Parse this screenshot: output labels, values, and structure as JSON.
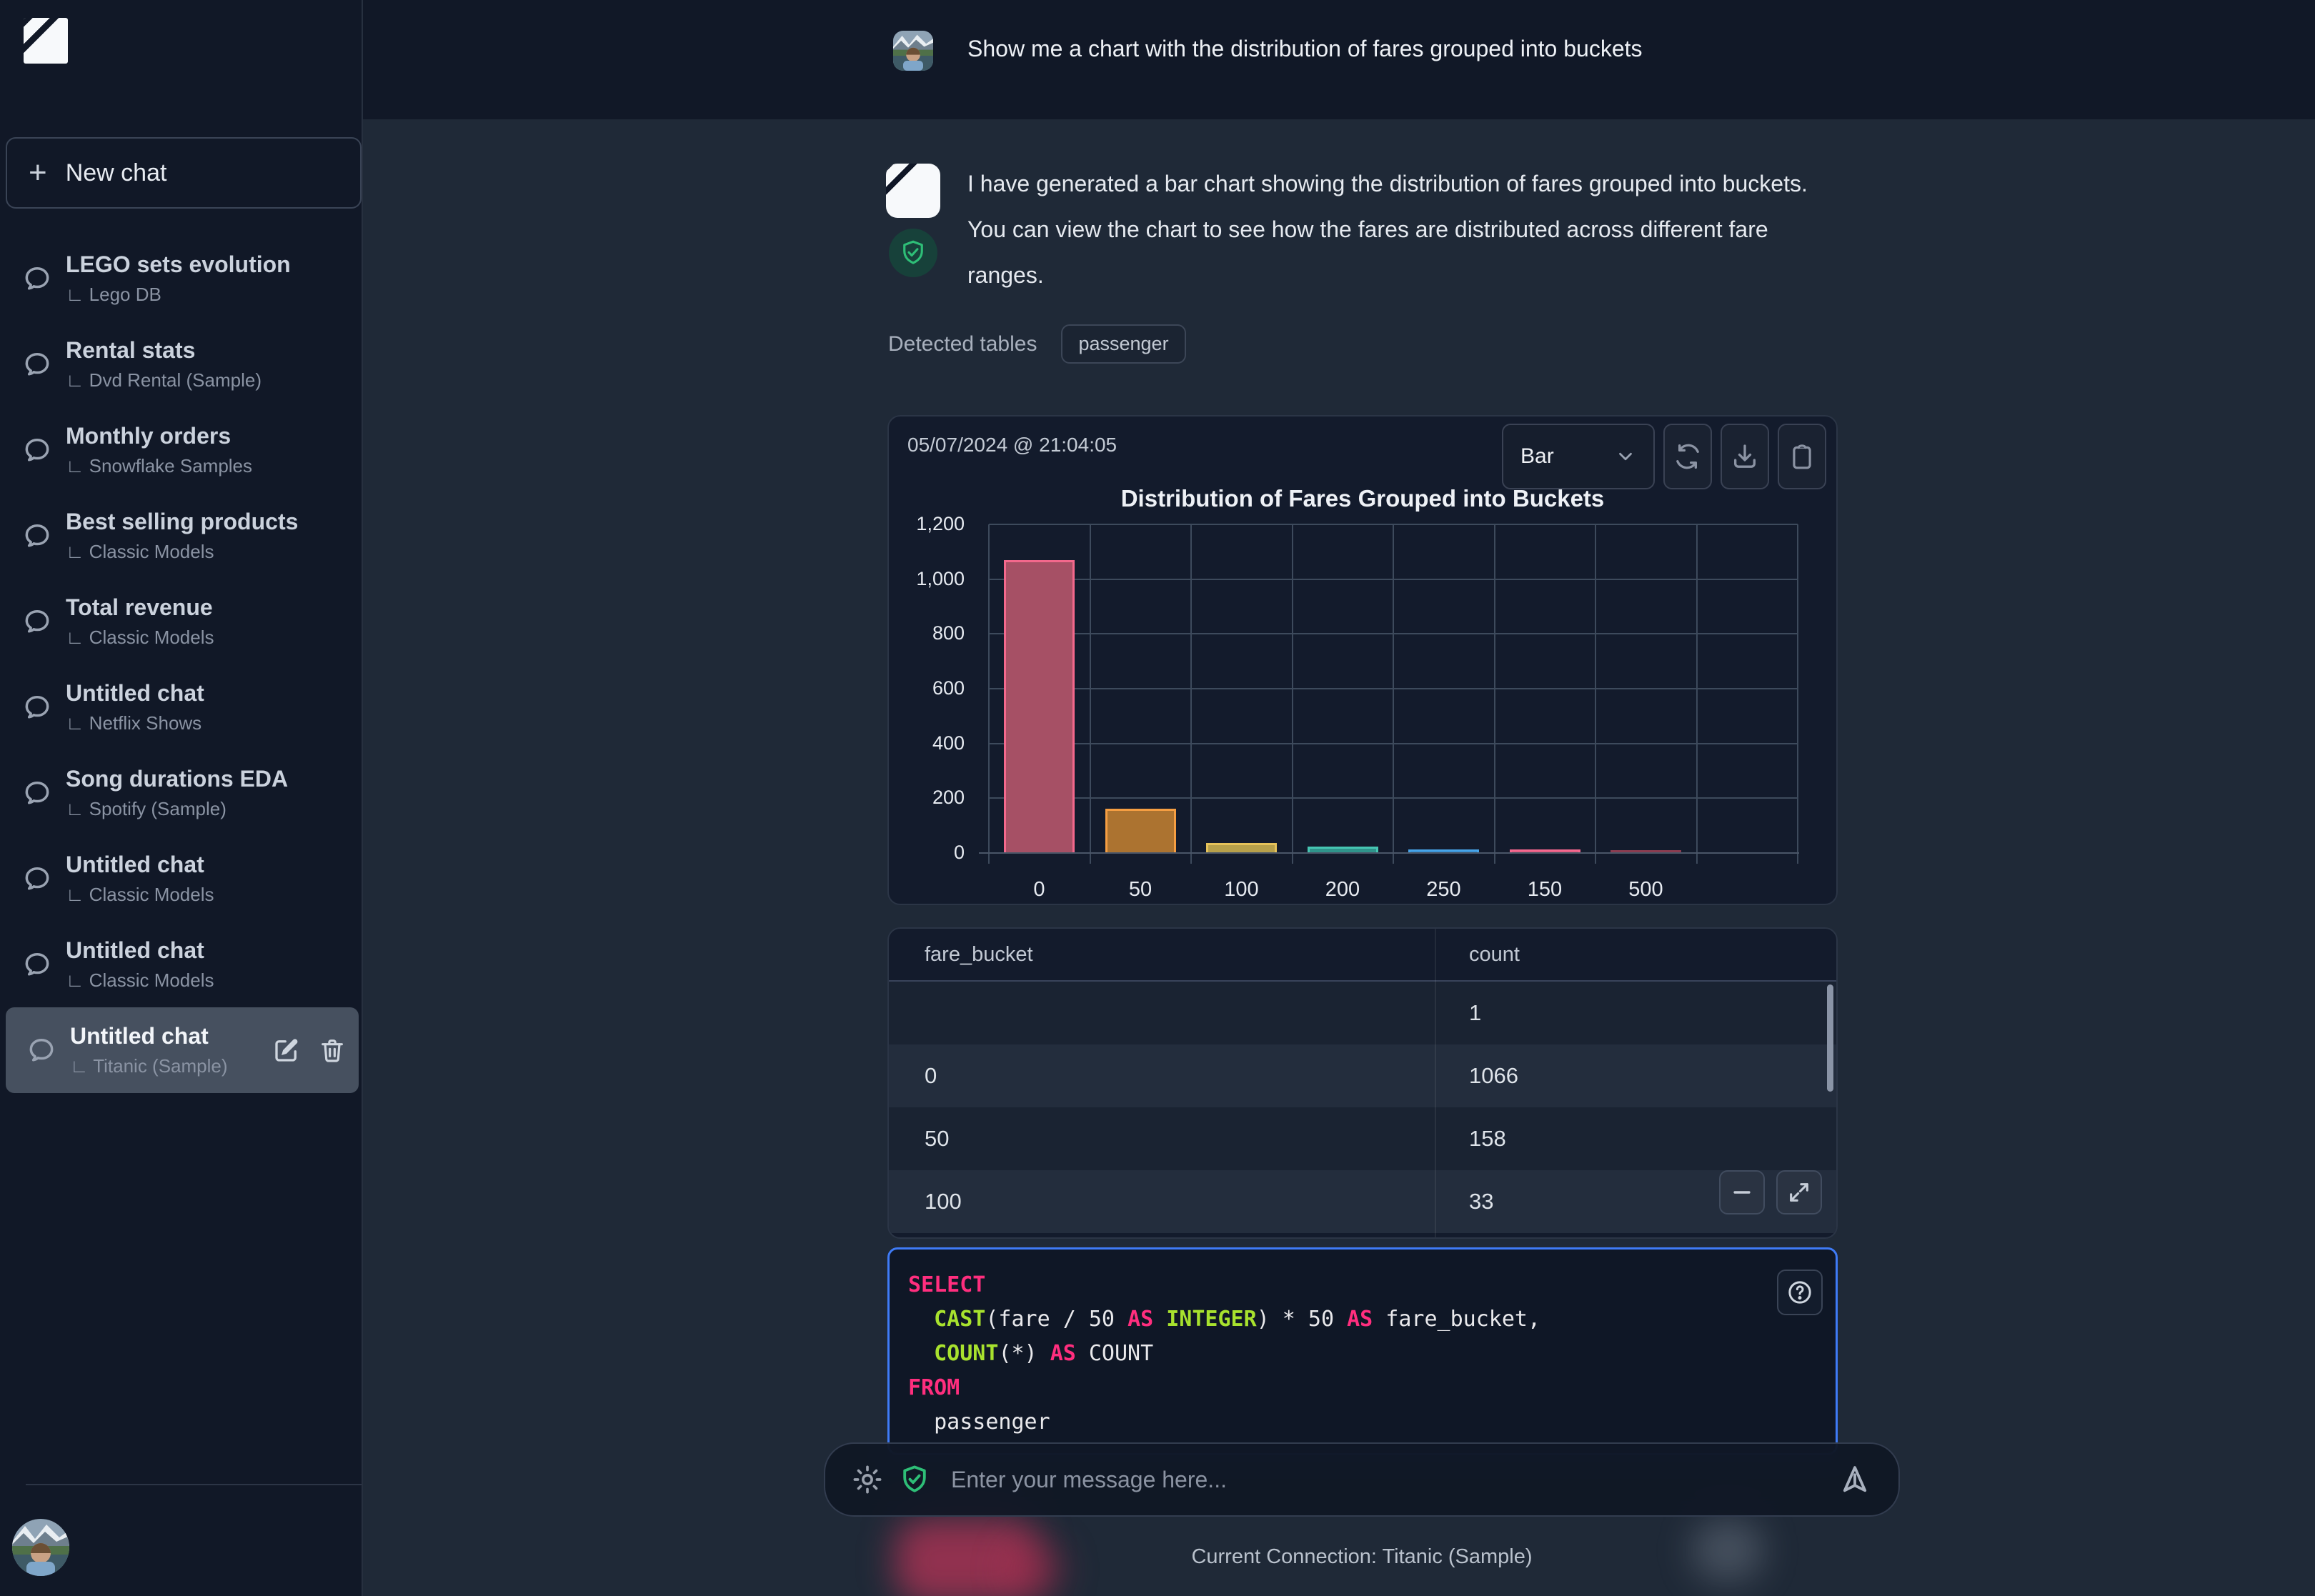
{
  "sidebar": {
    "new_chat_label": "New chat",
    "sub_prefix": "∟",
    "items": [
      {
        "title": "LEGO sets evolution",
        "db": "Lego DB",
        "selected": false
      },
      {
        "title": "Rental stats",
        "db": "Dvd Rental (Sample)",
        "selected": false
      },
      {
        "title": "Monthly orders",
        "db": "Snowflake Samples",
        "selected": false
      },
      {
        "title": "Best selling products",
        "db": "Classic Models",
        "selected": false
      },
      {
        "title": "Total revenue",
        "db": "Classic Models",
        "selected": false
      },
      {
        "title": "Untitled chat",
        "db": "Netflix Shows",
        "selected": false
      },
      {
        "title": "Song durations EDA",
        "db": "Spotify (Sample)",
        "selected": false
      },
      {
        "title": "Untitled chat",
        "db": "Classic Models",
        "selected": false
      },
      {
        "title": "Untitled chat",
        "db": "Classic Models",
        "selected": false
      },
      {
        "title": "Untitled chat",
        "db": "Titanic (Sample)",
        "selected": true
      }
    ]
  },
  "chat": {
    "user_message": "Show me a chart with the distribution of fares grouped into buckets",
    "assistant_message": "I have generated a bar chart showing the distribution of fares grouped into buckets. You can view the chart to see how the fares are distributed across different fare ranges.",
    "detected_tables_label": "Detected tables",
    "detected_tables": [
      "passenger"
    ]
  },
  "result_card": {
    "timestamp": "05/07/2024 @ 21:04:05",
    "chart_type_selected": "Bar"
  },
  "chart_data": {
    "type": "bar",
    "title": "Distribution of Fares Grouped into Buckets",
    "categories": [
      "0",
      "50",
      "100",
      "200",
      "250",
      "150",
      "500"
    ],
    "values": [
      1066,
      158,
      33,
      20,
      11,
      11,
      3
    ],
    "ylim": [
      0,
      1200
    ],
    "yticks": [
      0,
      200,
      400,
      600,
      800,
      1000,
      1200
    ],
    "grid": true,
    "legend": false,
    "num_columns": 8,
    "bar_colors": [
      {
        "fill": "#A65065",
        "border": "#F3688C"
      },
      {
        "fill": "#AC7330",
        "border": "#F59E42"
      },
      {
        "fill": "#B7A04A",
        "border": "#E5C25A"
      },
      {
        "fill": "#2F948B",
        "border": "#46C5B2"
      },
      {
        "fill": "#2F7FBE",
        "border": "#47A4E8"
      },
      {
        "fill": "#D25476",
        "border": "#F4688E"
      },
      {
        "fill": "#6E3140",
        "border": "#8A3C50"
      }
    ]
  },
  "table": {
    "columns": [
      "fare_bucket",
      "count"
    ],
    "rows": [
      [
        "",
        "1"
      ],
      [
        "0",
        "1066"
      ],
      [
        "50",
        "158"
      ],
      [
        "100",
        "33"
      ]
    ]
  },
  "sql": {
    "lines": [
      [
        [
          "kw",
          "SELECT"
        ]
      ],
      [
        [
          "pl",
          "  "
        ],
        [
          "fn",
          "CAST"
        ],
        [
          "pl",
          "(fare / 50 "
        ],
        [
          "kw",
          "AS"
        ],
        [
          "pl",
          " "
        ],
        [
          "fn",
          "INTEGER"
        ],
        [
          "pl",
          ") * 50 "
        ],
        [
          "kw",
          "AS"
        ],
        [
          "pl",
          " fare_bucket,"
        ]
      ],
      [
        [
          "pl",
          "  "
        ],
        [
          "fn",
          "COUNT"
        ],
        [
          "pl",
          "(*) "
        ],
        [
          "kw",
          "AS"
        ],
        [
          "pl",
          " COUNT"
        ]
      ],
      [
        [
          "kw",
          "FROM"
        ]
      ],
      [
        [
          "pl",
          "  passenger"
        ]
      ]
    ]
  },
  "input": {
    "placeholder": "Enter your message here..."
  },
  "footer": {
    "connection": "Current Connection: Titanic (Sample)"
  },
  "colors": {
    "sidebar_bg": "#111827",
    "main_bg": "#1F2937",
    "card_bg": "#131B2C",
    "accent_blue": "#3F7BF6",
    "shield_green": "#2EBE77",
    "sql_keyword": "#FF2E7E",
    "sql_function": "#A8E22E"
  }
}
